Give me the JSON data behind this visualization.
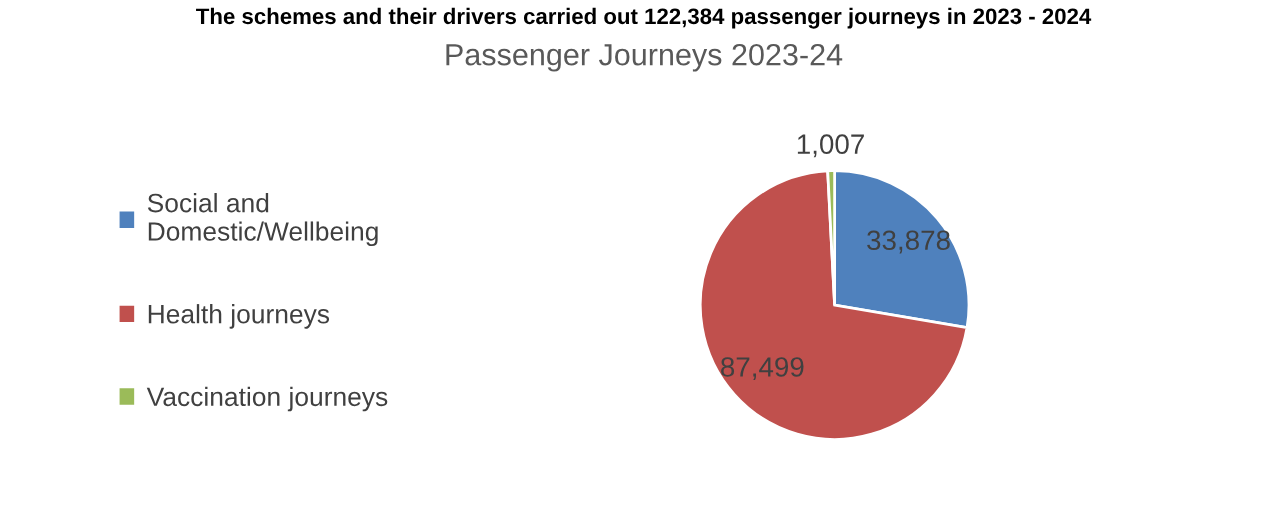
{
  "chart_data": {
    "type": "pie",
    "title": "Passenger Journeys 2023-24",
    "annotations": [
      "The schemes and their drivers carried out 122,384 passenger journeys in 2023 - 2024"
    ],
    "categories": [
      "Social and\nDomestic/Wellbeing",
      "Health journeys",
      "Vaccination journeys"
    ],
    "values": [
      33878,
      87499,
      1007
    ],
    "colors": [
      "#4f81bd",
      "#c0504d",
      "#9bbb59"
    ],
    "value_labels": [
      "33,878",
      "87,499",
      "1,007"
    ],
    "legend": "left"
  }
}
